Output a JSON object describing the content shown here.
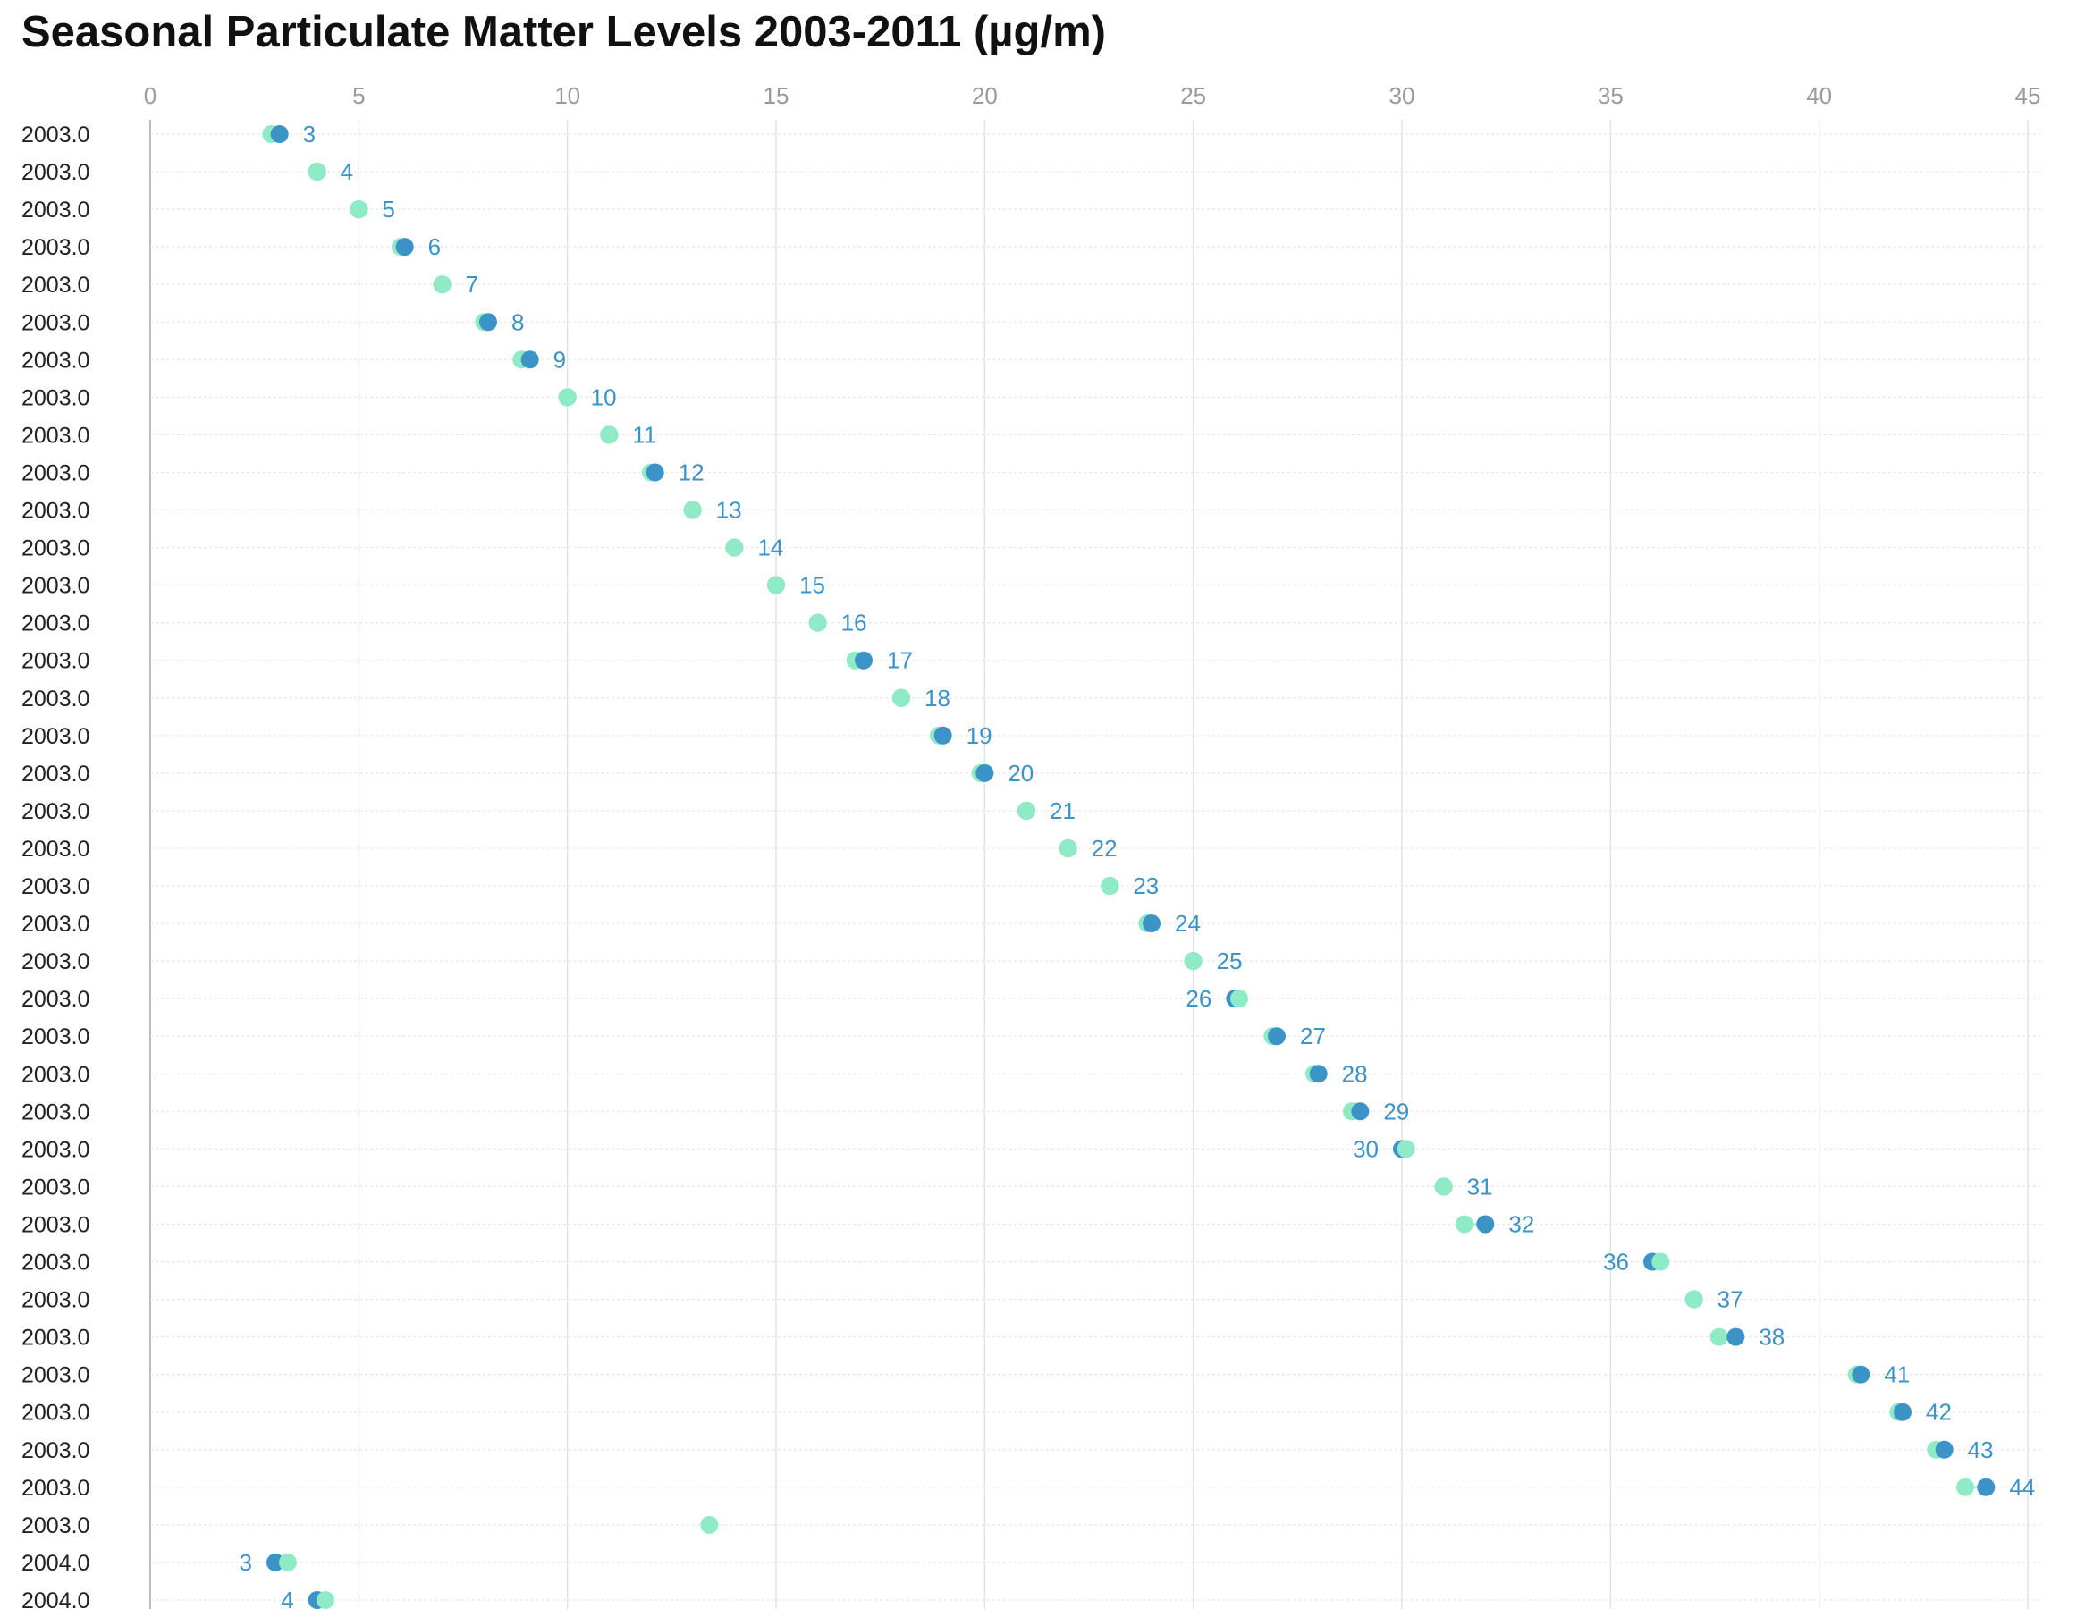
{
  "chart_data": {
    "type": "scatter",
    "title": "Seasonal Particulate Matter Levels 2003-2011 (µg/m)",
    "xlim": [
      0,
      45
    ],
    "x_ticks": [
      "0",
      "5",
      "10",
      "15",
      "20",
      "25",
      "30",
      "35",
      "40",
      "45"
    ],
    "orientation": "horizontal dumbbell",
    "grid": true,
    "colors": {
      "start": "#8eebc6",
      "end": "#3b93c8",
      "label": "#3b93c8"
    },
    "rows": [
      {
        "y": "2003.0",
        "a": 2.9,
        "b": 3.1,
        "label": "3"
      },
      {
        "y": "2003.0",
        "a": 4.0,
        "b": 4.0,
        "label": "4"
      },
      {
        "y": "2003.0",
        "a": 5.0,
        "b": 5.0,
        "label": "5"
      },
      {
        "y": "2003.0",
        "a": 6.0,
        "b": 6.1,
        "label": "6"
      },
      {
        "y": "2003.0",
        "a": 7.0,
        "b": 7.0,
        "label": "7"
      },
      {
        "y": "2003.0",
        "a": 8.0,
        "b": 8.1,
        "label": "8"
      },
      {
        "y": "2003.0",
        "a": 8.9,
        "b": 9.1,
        "label": "9"
      },
      {
        "y": "2003.0",
        "a": 10.0,
        "b": 10.0,
        "label": "10"
      },
      {
        "y": "2003.0",
        "a": 11.0,
        "b": 11.0,
        "label": "11"
      },
      {
        "y": "2003.0",
        "a": 12.0,
        "b": 12.1,
        "label": "12"
      },
      {
        "y": "2003.0",
        "a": 13.0,
        "b": 13.0,
        "label": "13"
      },
      {
        "y": "2003.0",
        "a": 14.0,
        "b": 14.0,
        "label": "14"
      },
      {
        "y": "2003.0",
        "a": 15.0,
        "b": 15.0,
        "label": "15"
      },
      {
        "y": "2003.0",
        "a": 16.0,
        "b": 16.0,
        "label": "16"
      },
      {
        "y": "2003.0",
        "a": 16.9,
        "b": 17.1,
        "label": "17"
      },
      {
        "y": "2003.0",
        "a": 18.0,
        "b": 18.0,
        "label": "18"
      },
      {
        "y": "2003.0",
        "a": 18.9,
        "b": 19.0,
        "label": "19"
      },
      {
        "y": "2003.0",
        "a": 19.9,
        "b": 20.0,
        "label": "20"
      },
      {
        "y": "2003.0",
        "a": 21.0,
        "b": 21.0,
        "label": "21"
      },
      {
        "y": "2003.0",
        "a": 22.0,
        "b": 22.0,
        "label": "22"
      },
      {
        "y": "2003.0",
        "a": 23.0,
        "b": 23.0,
        "label": "23"
      },
      {
        "y": "2003.0",
        "a": 23.9,
        "b": 24.0,
        "label": "24"
      },
      {
        "y": "2003.0",
        "a": 25.0,
        "b": 25.0,
        "label": "25"
      },
      {
        "y": "2003.0",
        "a": 26.1,
        "b": 26.0,
        "label": "26"
      },
      {
        "y": "2003.0",
        "a": 26.9,
        "b": 27.0,
        "label": "27"
      },
      {
        "y": "2003.0",
        "a": 27.9,
        "b": 28.0,
        "label": "28"
      },
      {
        "y": "2003.0",
        "a": 28.8,
        "b": 29.0,
        "label": "29"
      },
      {
        "y": "2003.0",
        "a": 30.1,
        "b": 30.0,
        "label": "30"
      },
      {
        "y": "2003.0",
        "a": 31.0,
        "b": 31.0,
        "label": "31"
      },
      {
        "y": "2003.0",
        "a": 31.5,
        "b": 32.0,
        "label": "32"
      },
      {
        "y": "2003.0",
        "a": 36.2,
        "b": 36.0,
        "label": "36"
      },
      {
        "y": "2003.0",
        "a": 37.0,
        "b": 37.0,
        "label": "37"
      },
      {
        "y": "2003.0",
        "a": 37.6,
        "b": 38.0,
        "label": "38"
      },
      {
        "y": "2003.0",
        "a": 40.9,
        "b": 41.0,
        "label": "41"
      },
      {
        "y": "2003.0",
        "a": 41.9,
        "b": 42.0,
        "label": "42"
      },
      {
        "y": "2003.0",
        "a": 42.8,
        "b": 43.0,
        "label": "43"
      },
      {
        "y": "2003.0",
        "a": 43.5,
        "b": 44.0,
        "label": "44"
      },
      {
        "y": "2003.0",
        "a": 13.4,
        "b": null,
        "label": ""
      },
      {
        "y": "2004.0",
        "a": 3.3,
        "b": 3.0,
        "label": "3"
      },
      {
        "y": "2004.0",
        "a": 4.2,
        "b": 4.0,
        "label": "4"
      }
    ]
  }
}
